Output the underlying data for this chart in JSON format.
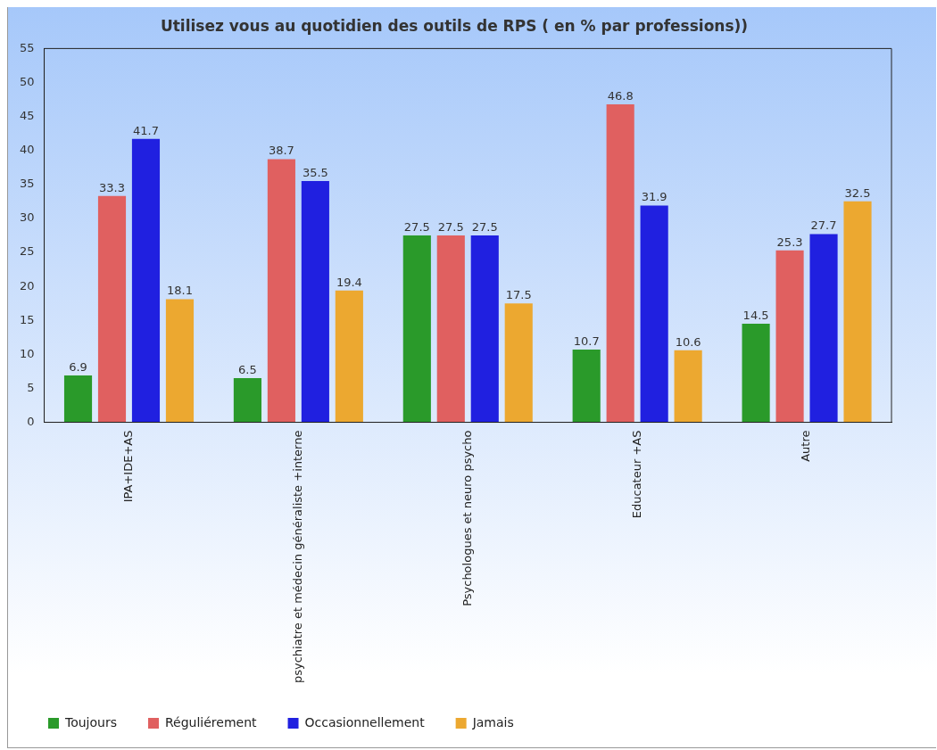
{
  "chart_data": {
    "type": "bar",
    "title": "Utilisez vous au quotidien des outils de RPS ( en % par professions))",
    "categories": [
      "IPA+IDE+AS",
      "psychiatre et médecin généraliste +interne",
      "Psychologues et neuro psycho",
      "Educateur +AS",
      "Autre"
    ],
    "series": [
      {
        "name": "Toujours",
        "color": "#2a9a2a",
        "values": [
          6.9,
          6.5,
          27.5,
          10.7,
          14.5
        ]
      },
      {
        "name": "Réguliérement",
        "color": "#e06060",
        "values": [
          33.3,
          38.7,
          27.5,
          46.8,
          25.3
        ]
      },
      {
        "name": "Occasionnellement",
        "color": "#2020e0",
        "values": [
          41.7,
          35.5,
          27.5,
          31.9,
          27.7
        ]
      },
      {
        "name": "Jamais",
        "color": "#eca830",
        "values": [
          18.1,
          19.4,
          17.5,
          10.6,
          32.5
        ]
      }
    ],
    "ylim": [
      0,
      55
    ],
    "yticks": [
      0,
      5,
      10,
      15,
      20,
      25,
      30,
      35,
      40,
      45,
      50,
      55
    ],
    "grid": false,
    "legend": "bottom left",
    "data_labels": true
  }
}
